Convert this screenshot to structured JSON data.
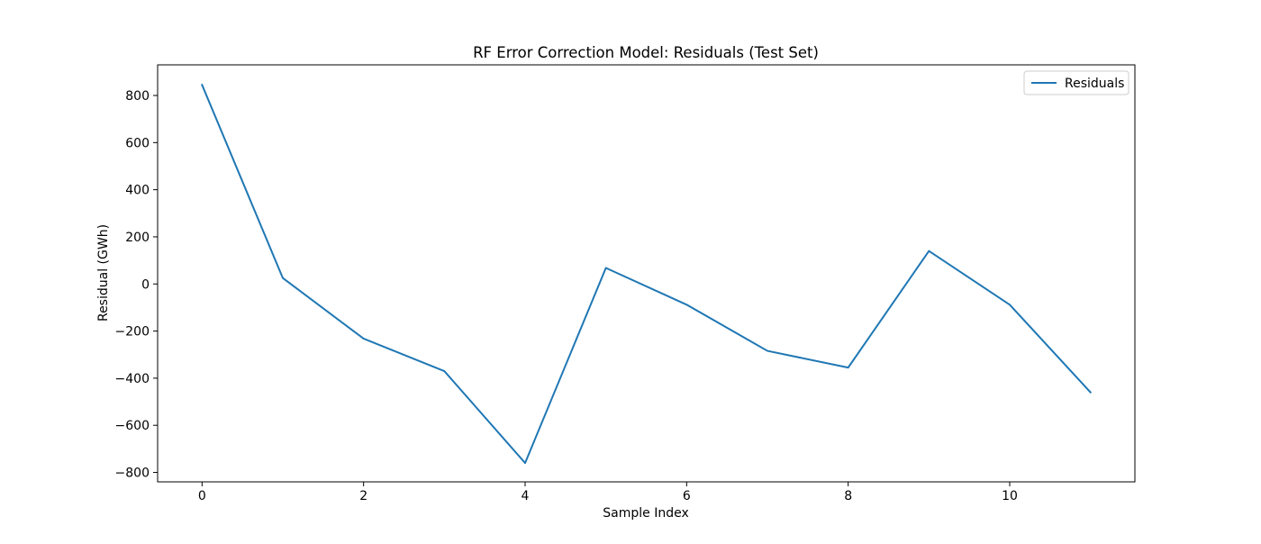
{
  "chart_data": {
    "type": "line",
    "title": "RF Error Correction Model: Residuals (Test Set)",
    "xlabel": "Sample Index",
    "ylabel": "Residual (GWh)",
    "xlim": [
      -0.55,
      11.55
    ],
    "ylim": [
      -840,
      930
    ],
    "x_ticks": [
      0,
      2,
      4,
      6,
      8,
      10
    ],
    "x_tick_labels": [
      "0",
      "2",
      "4",
      "6",
      "8",
      "10"
    ],
    "y_ticks": [
      -800,
      -600,
      -400,
      -200,
      0,
      200,
      400,
      600,
      800
    ],
    "y_tick_labels": [
      "−800",
      "−600",
      "−400",
      "−200",
      "0",
      "200",
      "400",
      "600",
      "800"
    ],
    "grid": false,
    "legend_position": "top-right",
    "series": [
      {
        "name": "Residuals",
        "color": "#1f77b4",
        "x": [
          0,
          1,
          2,
          3,
          4,
          5,
          6,
          7,
          8,
          9,
          10,
          11
        ],
        "y": [
          845,
          25,
          -232,
          -370,
          -760,
          68,
          -88,
          -284,
          -355,
          140,
          -88,
          -460
        ]
      }
    ]
  }
}
